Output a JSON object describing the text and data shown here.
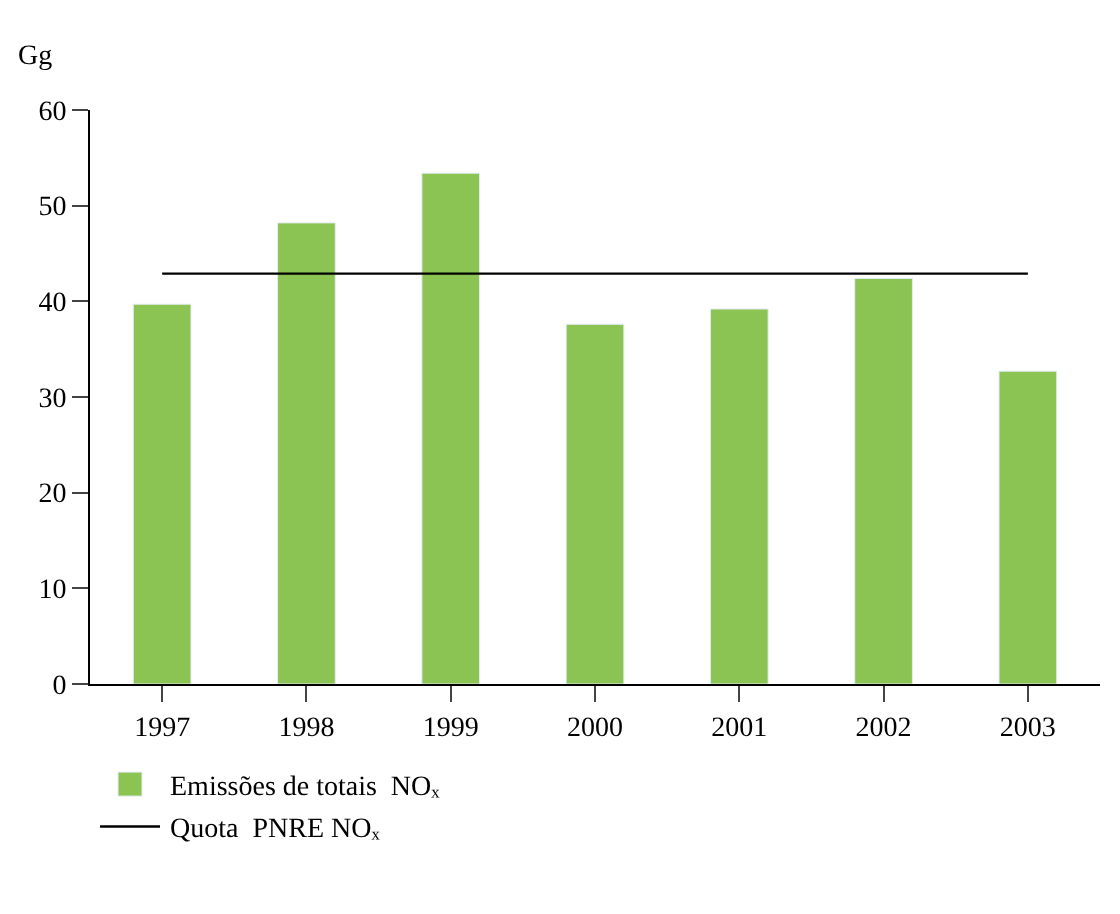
{
  "chart_data": {
    "type": "bar",
    "ylabel": "Gg",
    "categories": [
      "1997",
      "1998",
      "1999",
      "2000",
      "2001",
      "2002",
      "2003"
    ],
    "series": [
      {
        "name": "Emissões de totais  NOₓ",
        "color": "#8bc452",
        "values": [
          39.7,
          48.2,
          53.4,
          37.6,
          39.2,
          42.4,
          32.7
        ]
      },
      {
        "name": "Quota  PNRE NOₓ",
        "type": "line",
        "color": "#000000",
        "values": [
          42.9,
          42.9,
          42.9,
          42.9,
          42.9,
          42.9,
          42.9
        ]
      }
    ],
    "ylim": [
      0,
      60
    ],
    "yticks": [
      0,
      10,
      20,
      30,
      40,
      50,
      60
    ],
    "grid": false,
    "legend": "bottom left",
    "marker": "none"
  }
}
